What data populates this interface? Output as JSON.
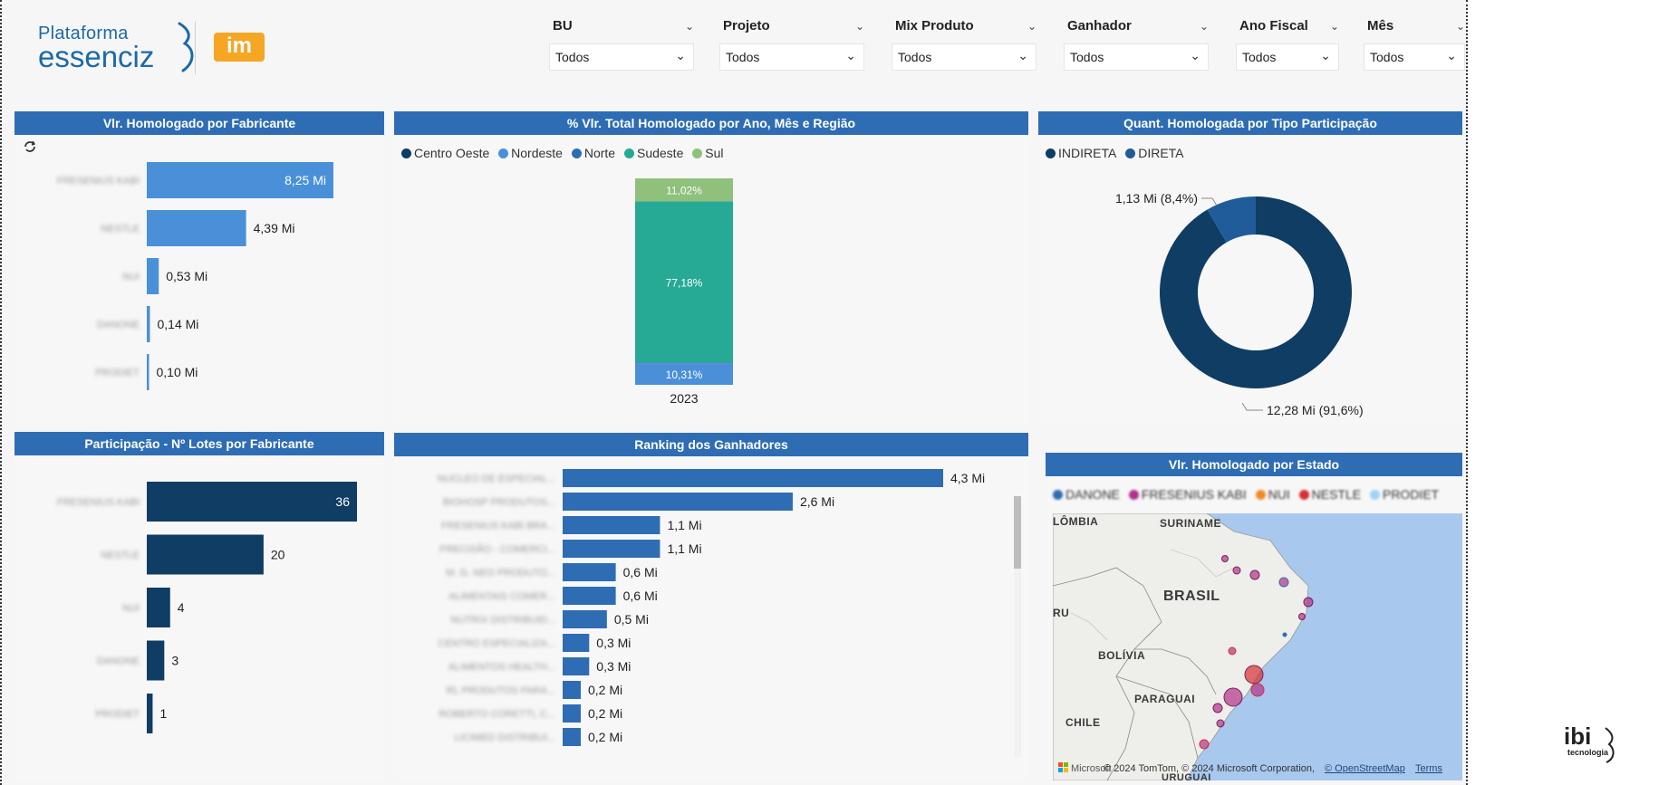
{
  "brand": {
    "line1": "Plataforma",
    "line2": "essenciz",
    "partner": "im",
    "footer_logo": "ibi",
    "footer_sub": "tecnologia"
  },
  "filters": [
    {
      "label": "BU",
      "value": "Todos"
    },
    {
      "label": "Projeto",
      "value": "Todos"
    },
    {
      "label": "Mix Produto",
      "value": "Todos"
    },
    {
      "label": "Ganhador",
      "value": "Todos"
    },
    {
      "label": "Ano Fiscal",
      "value": "Todos"
    },
    {
      "label": "Mês",
      "value": "Todos"
    }
  ],
  "icons": {
    "filter_chevron": "chevron-down-icon",
    "reset": "refresh-icon"
  },
  "colors": {
    "header_bar": "#2e6db4",
    "bar_light": "#4a90d9",
    "bar_dark": "#0f3d64",
    "centro_oeste": "#0f3d64",
    "nordeste": "#4a90d9",
    "norte": "#2e6db4",
    "sudeste": "#26a995",
    "sul": "#8fc07c",
    "indireta": "#0f3d64",
    "direta": "#1f5c99"
  },
  "panels": {
    "fabricante": {
      "title": "Vlr. Homologado por Fabricante"
    },
    "regiao": {
      "title": "% Vlr. Total Homologado por Ano, Mês e Região"
    },
    "tipo": {
      "title": "Quant. Homologada por Tipo Participação"
    },
    "lotes": {
      "title": "Participação - Nº Lotes por Fabricante"
    },
    "ranking": {
      "title": "Ranking dos Ganhadores"
    },
    "estado": {
      "title": "Vlr. Homologado por Estado"
    }
  },
  "chart_data": [
    {
      "id": "fabricante",
      "type": "bar",
      "orientation": "horizontal",
      "title": "Vlr. Homologado por Fabricante",
      "categories": [
        "FRESENIUS KABI",
        "NESTLE",
        "NUI",
        "DANONE",
        "PRODIET"
      ],
      "values": [
        8.25,
        4.39,
        0.53,
        0.14,
        0.1
      ],
      "labels": [
        "8,25 Mi",
        "4,39 Mi",
        "0,53 Mi",
        "0,14 Mi",
        "0,10 Mi"
      ],
      "unit": "Mi"
    },
    {
      "id": "regiao",
      "type": "bar",
      "stacked": true,
      "title": "% Vlr. Total Homologado por Ano, Mês e Região",
      "categories": [
        "2023"
      ],
      "legend": [
        "Centro Oeste",
        "Nordeste",
        "Norte",
        "Sudeste",
        "Sul"
      ],
      "series": [
        {
          "name": "Nordeste",
          "values": [
            10.31
          ],
          "label": "10,31%"
        },
        {
          "name": "Norte",
          "values": [
            0.4
          ],
          "label": ""
        },
        {
          "name": "Sudeste",
          "values": [
            77.18
          ],
          "label": "77,18%"
        },
        {
          "name": "Sul",
          "values": [
            11.02
          ],
          "label": "11,02%"
        }
      ],
      "unit": "%"
    },
    {
      "id": "tipo",
      "type": "pie",
      "donut": true,
      "title": "Quant. Homologada por Tipo Participação",
      "legend": [
        "INDIRETA",
        "DIRETA"
      ],
      "slices": [
        {
          "name": "INDIRETA",
          "value": 12.28,
          "pct": 91.6,
          "label": "12,28 Mi (91,6%)"
        },
        {
          "name": "DIRETA",
          "value": 1.13,
          "pct": 8.4,
          "label": "1,13 Mi (8,4%)"
        }
      ]
    },
    {
      "id": "lotes",
      "type": "bar",
      "orientation": "horizontal",
      "title": "Participação - Nº Lotes por Fabricante",
      "categories": [
        "FRESENIUS KABI",
        "NESTLE",
        "NUI",
        "DANONE",
        "PRODIET"
      ],
      "values": [
        36,
        20,
        4,
        3,
        1
      ],
      "labels": [
        "36",
        "20",
        "4",
        "3",
        "1"
      ]
    },
    {
      "id": "ranking",
      "type": "bar",
      "orientation": "horizontal",
      "title": "Ranking dos Ganhadores",
      "categories": [
        "NUCLEO DE ESPECIAL...",
        "BIOHOSP PRODUTOS...",
        "FRESENIUS KABI BRA...",
        "PRECISÃO - COMERCI...",
        "M. G. NEO PRODUTO...",
        "ALIMENTAIS COMER...",
        "NUTRIX DISTRIBUID...",
        "CENTRO ESPECIALIZA...",
        "ALIMENTOS HEALTH...",
        "RL PRODUTOS PARA...",
        "ROBERTO CORETTI, C...",
        "LICIMED DISTRIBUI..."
      ],
      "values": [
        4.3,
        2.6,
        1.1,
        1.1,
        0.6,
        0.6,
        0.5,
        0.3,
        0.3,
        0.2,
        0.2,
        0.2
      ],
      "labels": [
        "4,3 Mi",
        "2,6 Mi",
        "1,1 Mi",
        "1,1 Mi",
        "0,6 Mi",
        "0,6 Mi",
        "0,5 Mi",
        "0,3 Mi",
        "0,3 Mi",
        "0,2 Mi",
        "0,2 Mi",
        "0,2 Mi"
      ]
    }
  ],
  "map": {
    "legend": [
      {
        "name": "DANONE",
        "color": "#2e6db4"
      },
      {
        "name": "FRESENIUS KABI",
        "color": "#b0338a"
      },
      {
        "name": "NUI",
        "color": "#f08a24"
      },
      {
        "name": "NESTLE",
        "color": "#d62f2f"
      },
      {
        "name": "PRODIET",
        "color": "#9fd3f5"
      }
    ],
    "labels": {
      "colombia": "LÔMBIA",
      "suriname": "SURINAME",
      "brasil": "BRASIL",
      "ru": "RU",
      "bolivia": "BOLÍVIA",
      "paraguai": "PARAGUAI",
      "chile": "CHILE",
      "uruguai": "URUGUAI"
    },
    "attribution": "© 2024 TomTom, © 2024 Microsoft Corporation,",
    "osm_link": "© OpenStreetMap",
    "terms_link": "Terms",
    "bing_logo": "Microsoft"
  }
}
